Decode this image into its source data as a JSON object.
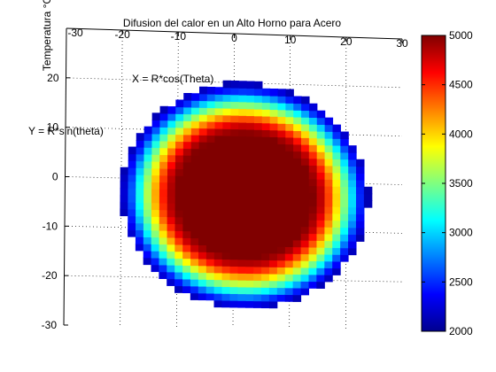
{
  "chart_data": {
    "type": "heatmap",
    "title": "Difusion del calor en un Alto Horno para Acero",
    "zlabel": "Temperatura °C",
    "annotations": [
      "X = R*cos(Theta)",
      "Y = R*sin(theta)"
    ],
    "x_ticks": [
      "-30",
      "-20",
      "-10",
      "0",
      "10",
      "20",
      "30"
    ],
    "y_ticks": [
      "20",
      "10",
      "0",
      "-10",
      "-20",
      "-30"
    ],
    "xlim": [
      -30,
      30
    ],
    "ylim": [
      -30,
      30
    ],
    "disk": {
      "center": [
        2,
        -3
      ],
      "radius_x": 22,
      "radius_y": 23
    },
    "radial_profile": {
      "r_fraction": [
        0.0,
        0.55,
        0.62,
        0.7,
        0.78,
        0.86,
        0.93,
        1.0
      ],
      "temperature": [
        5000,
        5000,
        4800,
        4300,
        3700,
        3100,
        2500,
        2100
      ]
    },
    "colorbar": {
      "min": 2000,
      "max": 5000,
      "ticks": [
        "5000",
        "4500",
        "4000",
        "3500",
        "3000",
        "2500",
        "2000"
      ],
      "colormap": "jet",
      "stops": [
        "#00008f",
        "#0000ff",
        "#0080ff",
        "#00ffff",
        "#80ff80",
        "#ffff00",
        "#ff8000",
        "#ff0000",
        "#800000"
      ]
    },
    "grid": true,
    "colors": {
      "background": "#ffffff",
      "axes": "#000000",
      "grid": "#000000"
    }
  }
}
